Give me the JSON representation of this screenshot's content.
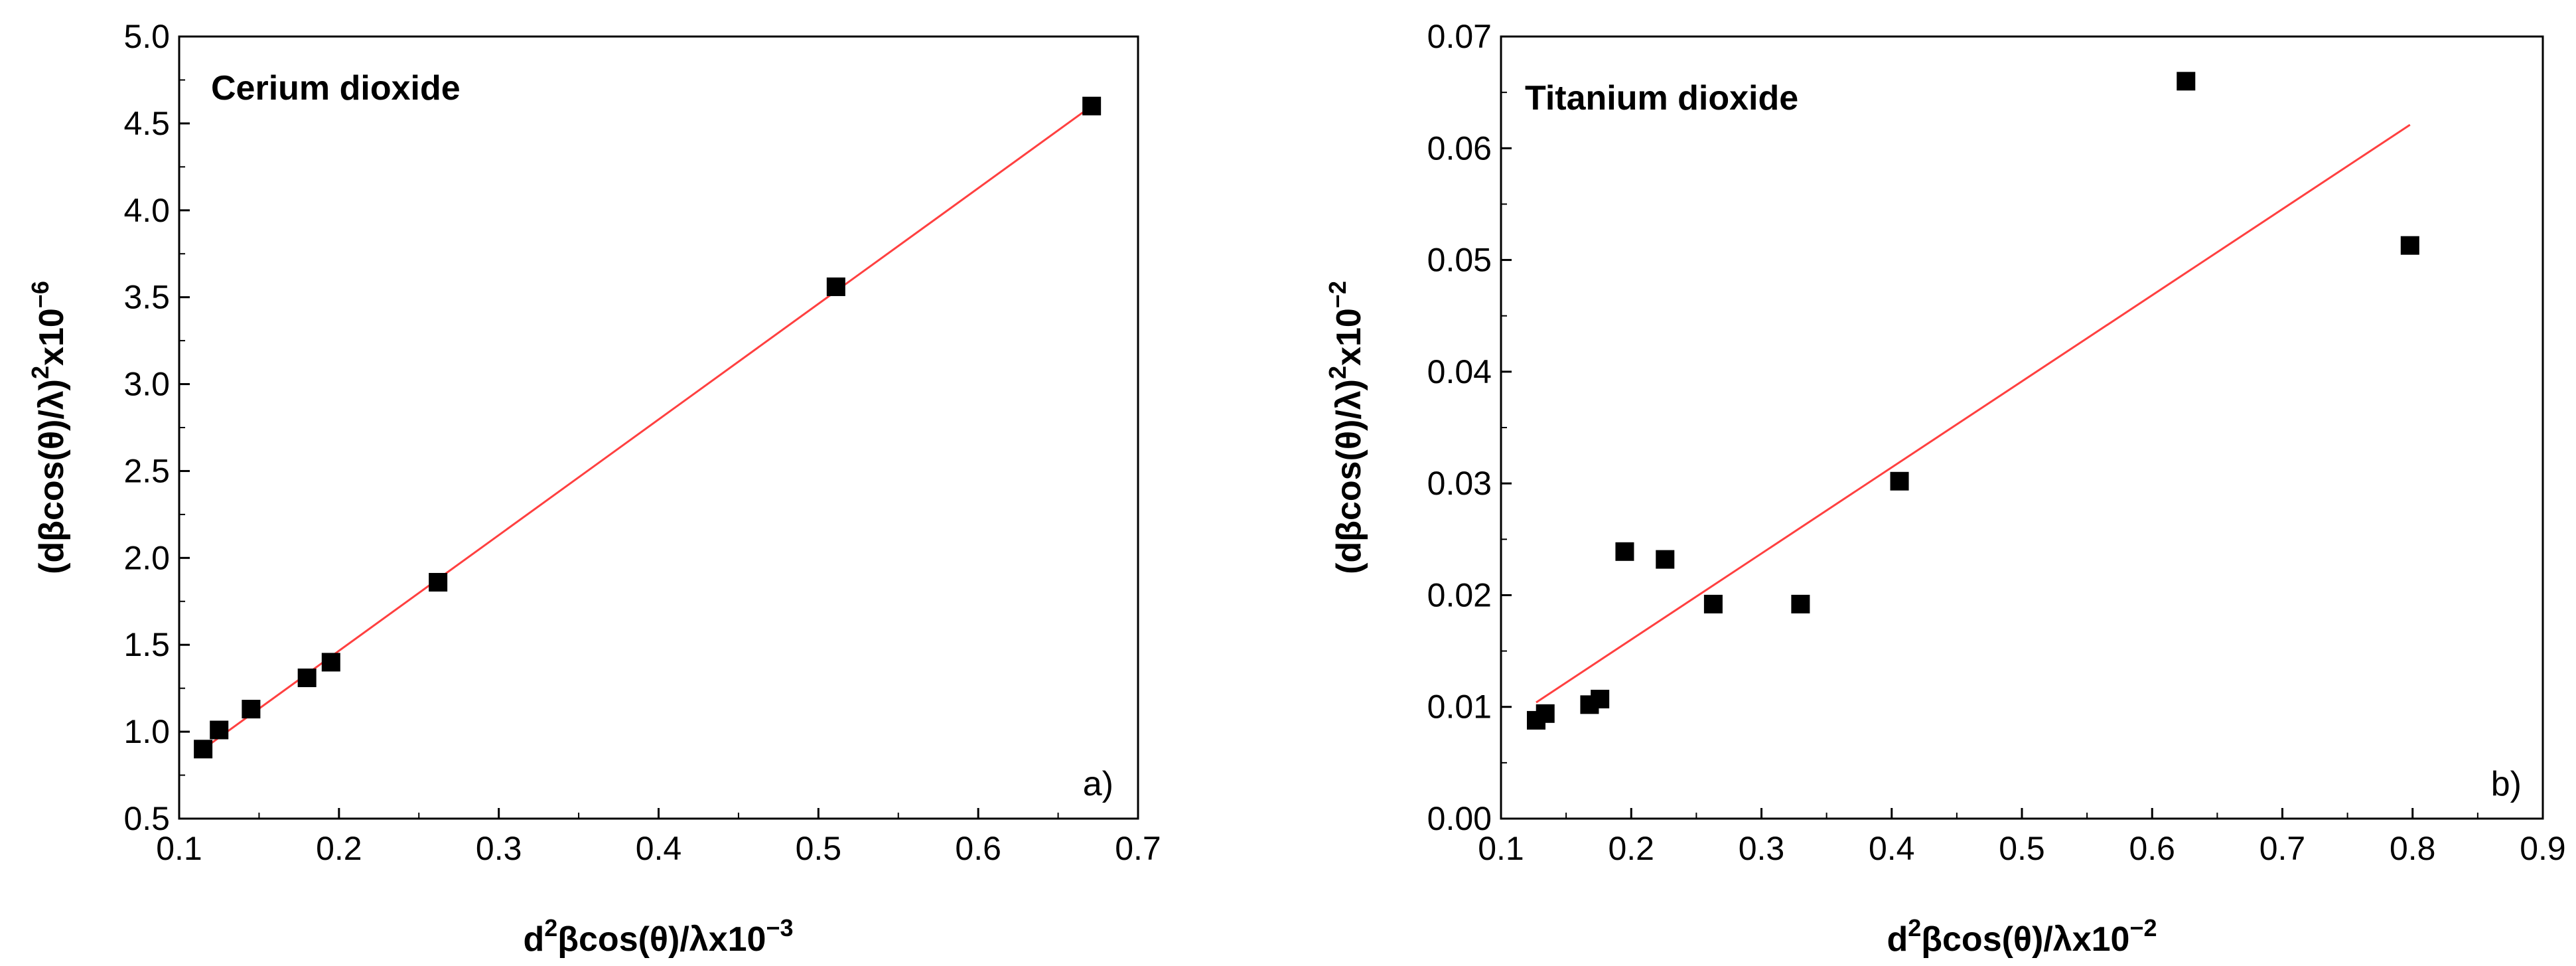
{
  "chart_data": [
    {
      "type": "scatter",
      "title": "Cerium  dioxide",
      "panel_label": "a)",
      "xlabel": {
        "prefix": "d",
        "exp1": "2",
        "body": "βcos(θ)/λx10",
        "exp2": "−3"
      },
      "ylabel": {
        "prefix": "(dβcos(θ)/λ)",
        "exp1": "2",
        "body": "x10",
        "exp2": "−6"
      },
      "xlim": [
        0.1,
        0.7
      ],
      "ylim": [
        0.5,
        5.0
      ],
      "xticks": [
        0.1,
        0.2,
        0.3,
        0.4,
        0.5,
        0.6,
        0.7
      ],
      "yticks": [
        0.5,
        1.0,
        1.5,
        2.0,
        2.5,
        3.0,
        3.5,
        4.0,
        4.5,
        5.0
      ],
      "xtick_labels": [
        "0.1",
        "0.2",
        "0.3",
        "0.4",
        "0.5",
        "0.6",
        "0.7"
      ],
      "ytick_labels": [
        "0.5",
        "1.0",
        "1.5",
        "2.0",
        "2.5",
        "3.0",
        "3.5",
        "4.0",
        "4.5",
        "5.0"
      ],
      "points": [
        {
          "x": 0.115,
          "y": 0.9
        },
        {
          "x": 0.125,
          "y": 1.01
        },
        {
          "x": 0.145,
          "y": 1.13
        },
        {
          "x": 0.18,
          "y": 1.31
        },
        {
          "x": 0.195,
          "y": 1.4
        },
        {
          "x": 0.262,
          "y": 1.86
        },
        {
          "x": 0.511,
          "y": 3.56
        },
        {
          "x": 0.671,
          "y": 4.6
        }
      ],
      "fit_line": {
        "x": [
          0.115,
          0.671
        ],
        "y": [
          0.9,
          4.6
        ],
        "color": "#ff4040"
      },
      "marker_color": "#000000"
    },
    {
      "type": "scatter",
      "title": "Titanium  dioxide",
      "panel_label": "b)",
      "xlabel": {
        "prefix": "d",
        "exp1": "2",
        "body": "βcos(θ)/λx10",
        "exp2": "−2"
      },
      "ylabel": {
        "prefix": "(dβcos(θ)/λ)",
        "exp1": "2",
        "body": "x10",
        "exp2": "−2"
      },
      "xlim": [
        0.1,
        0.9
      ],
      "ylim": [
        0.0,
        0.07
      ],
      "xticks": [
        0.1,
        0.2,
        0.3,
        0.4,
        0.5,
        0.6,
        0.7,
        0.8,
        0.9
      ],
      "yticks": [
        0.0,
        0.01,
        0.02,
        0.03,
        0.04,
        0.05,
        0.06,
        0.07
      ],
      "xtick_labels": [
        "0.1",
        "0.2",
        "0.3",
        "0.4",
        "0.5",
        "0.6",
        "0.7",
        "0.8",
        "0.9"
      ],
      "ytick_labels": [
        "0.00",
        "0.01",
        "0.02",
        "0.03",
        "0.04",
        "0.05",
        "0.06",
        "0.07"
      ],
      "points": [
        {
          "x": 0.127,
          "y": 0.0088
        },
        {
          "x": 0.134,
          "y": 0.0094
        },
        {
          "x": 0.168,
          "y": 0.0102
        },
        {
          "x": 0.176,
          "y": 0.0107
        },
        {
          "x": 0.195,
          "y": 0.0239
        },
        {
          "x": 0.226,
          "y": 0.0232
        },
        {
          "x": 0.263,
          "y": 0.0192
        },
        {
          "x": 0.33,
          "y": 0.0192
        },
        {
          "x": 0.406,
          "y": 0.0302
        },
        {
          "x": 0.626,
          "y": 0.066
        },
        {
          "x": 0.798,
          "y": 0.0513
        }
      ],
      "fit_line": {
        "x": [
          0.127,
          0.798
        ],
        "y": [
          0.0104,
          0.0621
        ],
        "color": "#ff4040"
      },
      "marker_color": "#000000"
    }
  ]
}
